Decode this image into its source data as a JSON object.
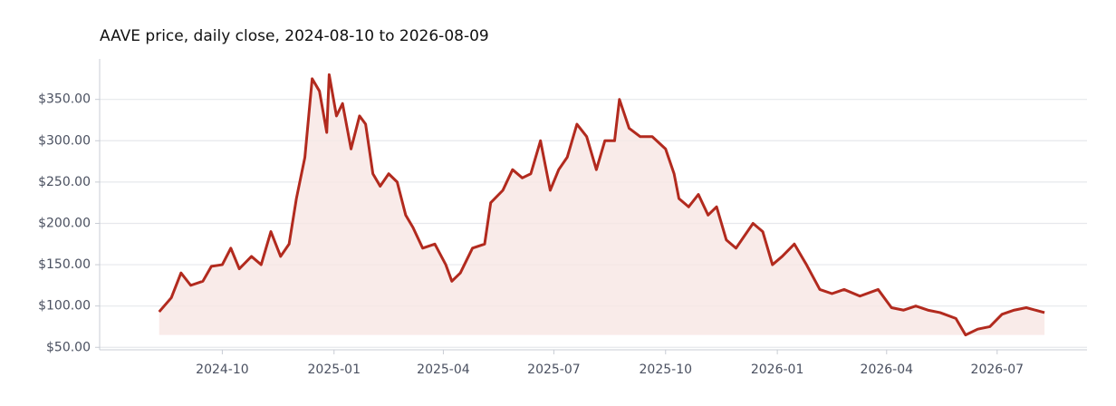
{
  "chart_data": {
    "type": "line",
    "title": "AAVE price, daily close, 2024-08-10 to 2026-08-09",
    "x": [
      "2024-08-10",
      "2024-08-20",
      "2024-08-28",
      "2024-09-05",
      "2024-09-15",
      "2024-09-22",
      "2024-10-01",
      "2024-10-08",
      "2024-10-15",
      "2024-10-25",
      "2024-11-02",
      "2024-11-10",
      "2024-11-18",
      "2024-11-25",
      "2024-12-01",
      "2024-12-08",
      "2024-12-14",
      "2024-12-20",
      "2024-12-26",
      "2024-12-28",
      "2025-01-03",
      "2025-01-08",
      "2025-01-15",
      "2025-01-22",
      "2025-01-27",
      "2025-02-02",
      "2025-02-08",
      "2025-02-15",
      "2025-02-22",
      "2025-03-01",
      "2025-03-07",
      "2025-03-15",
      "2025-03-25",
      "2025-04-03",
      "2025-04-08",
      "2025-04-15",
      "2025-04-25",
      "2025-05-05",
      "2025-05-10",
      "2025-05-20",
      "2025-05-28",
      "2025-06-05",
      "2025-06-12",
      "2025-06-20",
      "2025-06-28",
      "2025-07-05",
      "2025-07-12",
      "2025-07-20",
      "2025-07-28",
      "2025-08-05",
      "2025-08-12",
      "2025-08-20",
      "2025-08-24",
      "2025-09-01",
      "2025-09-10",
      "2025-09-20",
      "2025-10-01",
      "2025-10-08",
      "2025-10-12",
      "2025-10-20",
      "2025-10-28",
      "2025-11-05",
      "2025-11-12",
      "2025-11-20",
      "2025-11-28",
      "2025-12-05",
      "2025-12-12",
      "2025-12-20",
      "2025-12-28",
      "2026-01-05",
      "2026-01-15",
      "2026-01-25",
      "2026-02-05",
      "2026-02-15",
      "2026-02-25",
      "2026-03-10",
      "2026-03-25",
      "2026-04-05",
      "2026-04-15",
      "2026-04-25",
      "2026-05-05",
      "2026-05-15",
      "2026-05-28",
      "2026-06-05",
      "2026-06-15",
      "2026-06-25",
      "2026-07-05",
      "2026-07-15",
      "2026-07-25",
      "2026-08-09"
    ],
    "series": [
      {
        "name": "AAVE",
        "color": "#b22a1e",
        "fill": "#f7e6e4",
        "values": [
          93,
          110,
          140,
          125,
          130,
          148,
          150,
          170,
          145,
          160,
          150,
          190,
          160,
          175,
          230,
          280,
          375,
          360,
          310,
          380,
          330,
          345,
          290,
          330,
          320,
          260,
          245,
          260,
          250,
          210,
          195,
          170,
          175,
          150,
          130,
          140,
          170,
          175,
          225,
          240,
          265,
          255,
          260,
          300,
          240,
          265,
          280,
          320,
          305,
          265,
          300,
          300,
          350,
          315,
          305,
          305,
          290,
          260,
          230,
          220,
          235,
          210,
          220,
          180,
          170,
          185,
          200,
          190,
          150,
          160,
          175,
          150,
          120,
          115,
          120,
          112,
          120,
          98,
          95,
          100,
          95,
          92,
          85,
          65,
          72,
          75,
          90,
          95,
          98,
          92
        ]
      }
    ],
    "xlim": [
      "2024-06-22",
      "2026-09-13"
    ],
    "xticks": [
      "2024-10",
      "2025-01",
      "2025-04",
      "2025-07",
      "2025-10",
      "2026-01",
      "2026-04",
      "2026-07"
    ],
    "ylim": [
      47,
      399
    ],
    "yticks": [
      {
        "value": 50,
        "label": "$50.00"
      },
      {
        "value": 100,
        "label": "$100.00"
      },
      {
        "value": 150,
        "label": "$150.00"
      },
      {
        "value": 200,
        "label": "$200.00"
      },
      {
        "value": 250,
        "label": "$250.00"
      },
      {
        "value": 300,
        "label": "$300.00"
      },
      {
        "value": 350,
        "label": "$350.00"
      }
    ],
    "grid": true
  }
}
